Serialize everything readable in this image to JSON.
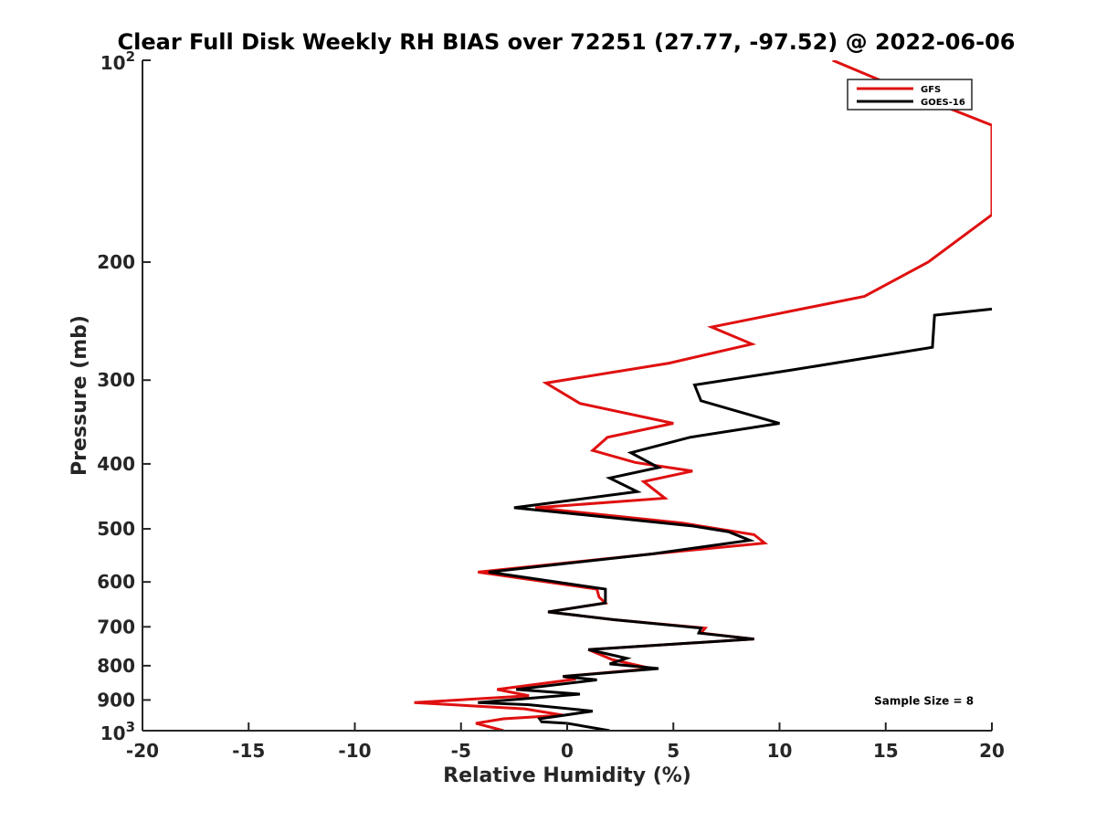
{
  "chart_data": {
    "type": "line",
    "title": "Clear Full Disk Weekly RH BIAS over 72251 (27.77, -97.52) @ 2022-06-06",
    "xlabel": "Relative Humidity (%)",
    "ylabel": "Pressure (mb)",
    "xlim": [
      -20,
      20
    ],
    "ylim": [
      100,
      1000
    ],
    "y_scale": "log",
    "y_reversed": true,
    "x_ticks": [
      -20,
      -15,
      -10,
      -5,
      0,
      5,
      10,
      15,
      20
    ],
    "x_tick_labels": [
      "-20",
      "-15",
      "-10",
      "-5",
      "0",
      "5",
      "10",
      "15",
      "20"
    ],
    "y_ticks": [
      100,
      200,
      300,
      400,
      500,
      600,
      700,
      800,
      900,
      1000
    ],
    "y_tick_labels": [
      "",
      "200",
      "300",
      "400",
      "500",
      "600",
      "700",
      "800",
      "900",
      ""
    ],
    "y_power_ticks": [
      {
        "value": 100,
        "base": "10",
        "exp": "2"
      },
      {
        "value": 1000,
        "base": "10",
        "exp": "3"
      }
    ],
    "grid": false,
    "legend_position": "top-right",
    "series": [
      {
        "name": "GFS",
        "color": "#e01010",
        "points": [
          [
            12.5,
            100
          ],
          [
            16.5,
            113
          ],
          [
            20,
            125
          ],
          [
            20,
            170
          ],
          [
            17,
            200
          ],
          [
            14,
            225
          ],
          [
            6.8,
            250
          ],
          [
            8.7,
            265
          ],
          [
            4.8,
            283
          ],
          [
            -1,
            303
          ],
          [
            0.6,
            325
          ],
          [
            5,
            348
          ],
          [
            1.9,
            365
          ],
          [
            1.2,
            382
          ],
          [
            3.2,
            398
          ],
          [
            5.9,
            410
          ],
          [
            3.6,
            425
          ],
          [
            4.6,
            450
          ],
          [
            -1.5,
            465
          ],
          [
            5.4,
            490
          ],
          [
            8.8,
            510
          ],
          [
            9.3,
            525
          ],
          [
            4,
            545
          ],
          [
            -4.2,
            580
          ],
          [
            1.4,
            615
          ],
          [
            1.5,
            632
          ],
          [
            1.8,
            645
          ],
          [
            -0.9,
            665
          ],
          [
            2.2,
            683
          ],
          [
            6.5,
            703
          ],
          [
            6.3,
            715
          ],
          [
            8.8,
            730
          ],
          [
            1,
            757
          ],
          [
            2.1,
            783
          ],
          [
            3,
            795
          ],
          [
            4,
            808
          ],
          [
            -0.2,
            830
          ],
          [
            0.4,
            838
          ],
          [
            -3.3,
            868
          ],
          [
            -1.8,
            887
          ],
          [
            -7.2,
            908
          ],
          [
            -2,
            928
          ],
          [
            -0.2,
            948
          ],
          [
            -3,
            960
          ],
          [
            -4.3,
            975
          ],
          [
            -3,
            1000
          ]
        ]
      },
      {
        "name": "GOES-16",
        "color": "#000000",
        "points": [
          [
            20,
            235
          ],
          [
            17.3,
            240
          ],
          [
            17.2,
            268
          ],
          [
            10.5,
            290
          ],
          [
            6,
            305
          ],
          [
            6.3,
            322
          ],
          [
            10,
            348
          ],
          [
            5.8,
            365
          ],
          [
            3,
            385
          ],
          [
            4.3,
            405
          ],
          [
            2,
            420
          ],
          [
            3.3,
            440
          ],
          [
            -2.5,
            465
          ],
          [
            5.9,
            495
          ],
          [
            7.6,
            505
          ],
          [
            8.6,
            520
          ],
          [
            4,
            545
          ],
          [
            -3.7,
            580
          ],
          [
            1.8,
            615
          ],
          [
            1.8,
            645
          ],
          [
            -0.9,
            665
          ],
          [
            2.2,
            683
          ],
          [
            6.3,
            703
          ],
          [
            6.2,
            715
          ],
          [
            8.8,
            730
          ],
          [
            1,
            757
          ],
          [
            2.8,
            780
          ],
          [
            2,
            795
          ],
          [
            4.3,
            808
          ],
          [
            -0.2,
            830
          ],
          [
            1.4,
            840
          ],
          [
            -2.4,
            868
          ],
          [
            0.6,
            882
          ],
          [
            -4.2,
            908
          ],
          [
            -1.8,
            915
          ],
          [
            1.2,
            935
          ],
          [
            -1.3,
            960
          ],
          [
            -1.2,
            970
          ],
          [
            0,
            975
          ],
          [
            2,
            1000
          ]
        ]
      }
    ],
    "legend": [
      {
        "label": "GFS",
        "color": "#e01010"
      },
      {
        "label": "GOES-16",
        "color": "#000000"
      }
    ],
    "annotations": [
      {
        "text": "Sample Size = 8",
        "x": 16.8,
        "y": 900
      }
    ]
  }
}
